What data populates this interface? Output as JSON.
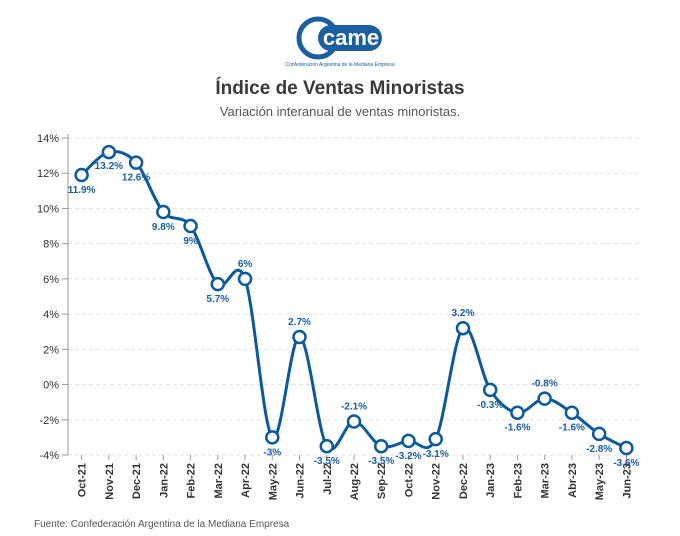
{
  "logo": {
    "wordmark": "came",
    "tagline": "Confederación Argentina de la Mediana Empresa"
  },
  "header": {
    "title": "Índice de Ventas Minoristas",
    "subtitle": "Variación interanual de ventas minoristas."
  },
  "footer": {
    "source": "Fuente: Confederación Argentina de la Mediana Empresa"
  },
  "colors": {
    "line": "#0d5a9a",
    "label": "#1a5fa0",
    "marker_fill": "#ffffff",
    "grid": "#e3e3e3",
    "logo": "#1a5fa0"
  },
  "chart_data": {
    "type": "line",
    "title": "Índice de Ventas Minoristas",
    "subtitle": "Variación interanual de ventas minoristas.",
    "categories": [
      "Oct-21",
      "Nov-21",
      "Dec-21",
      "Jan-22",
      "Feb-22",
      "Mar-22",
      "Apr-22",
      "May-22",
      "Jun-22",
      "Jul-22",
      "Aug-22",
      "Sep-22",
      "Oct-22",
      "Nov-22",
      "Dec-22",
      "Jan-23",
      "Feb-23",
      "Mar-23",
      "Abr-23",
      "May-23",
      "Jun-23"
    ],
    "series": [
      {
        "values": [
          11.9,
          13.2,
          12.6,
          9.8,
          9,
          5.7,
          6,
          -3,
          2.7,
          -3.5,
          -2.1,
          -3.5,
          -3.2,
          -3.1,
          3.2,
          -0.3,
          -1.6,
          -0.8,
          -1.6,
          -2.8,
          -3.6
        ],
        "labels": [
          "11.9%",
          "13.2%",
          "12.6%",
          "9.8%",
          "9%",
          "5.7%",
          "6%",
          "-3%",
          "2.7%",
          "-3.5%",
          "-2.1%",
          "-3.5%",
          "-3.2%",
          "-3.1%",
          "3.2%",
          "-0.3%",
          "-1.6%",
          "-0.8%",
          "-1.6%",
          "-2.8%",
          "-3.6%"
        ]
      }
    ],
    "y_ticks": [
      "14%",
      "12%",
      "10%",
      "8%",
      "6%",
      "4%",
      "2%",
      "0%",
      "-2%",
      "-4%"
    ],
    "ylim": [
      -4,
      14
    ],
    "grid": true,
    "legend": "none",
    "xlabel": "",
    "ylabel": ""
  }
}
